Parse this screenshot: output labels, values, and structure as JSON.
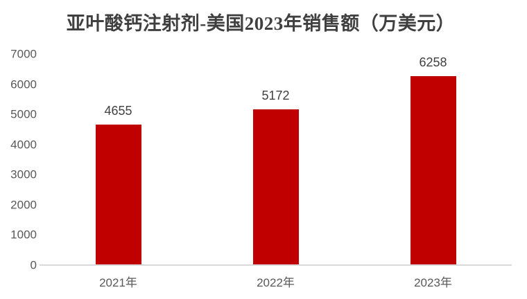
{
  "chart_data": {
    "type": "bar",
    "title": "亚叶酸钙注射剂-美国2023年销售额（万美元）",
    "categories": [
      "2021年",
      "2022年",
      "2023年"
    ],
    "values": [
      4655,
      5172,
      6258
    ],
    "data_labels": [
      "4655",
      "5172",
      "6258"
    ],
    "xlabel": "",
    "ylabel": "",
    "ylim": [
      0,
      7000
    ],
    "yticks": [
      0,
      1000,
      2000,
      3000,
      4000,
      5000,
      6000,
      7000
    ],
    "grid": false,
    "legend": false,
    "bar_color": "#C00000",
    "axis_line_color": "#D9D9D9",
    "tick_label_color": "#595959",
    "data_label_color": "#404040",
    "title_color": "#3F3F3F",
    "background_color": "#FFFFFF"
  }
}
